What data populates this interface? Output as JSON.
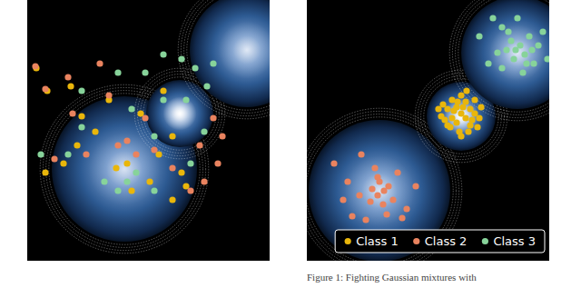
{
  "chart_data": [
    {
      "type": "scatter",
      "tick_labels": false,
      "marker": "circle",
      "xlim": [
        0,
        267
      ],
      "ylim": [
        287,
        0
      ],
      "gaussians": [
        {
          "x": 107,
          "y": 186,
          "radius": 80
        },
        {
          "x": 168,
          "y": 125,
          "radius": 37
        },
        {
          "x": 242,
          "y": 55,
          "radius": 63
        }
      ],
      "series": [
        {
          "color": "#e9b60b",
          "x": [
            10,
            22,
            48,
            60,
            75,
            40,
            98,
            110,
            150,
            160,
            170,
            115,
            135,
            160,
            175,
            125,
            90,
            55,
            145,
            20
          ],
          "values": [
            75,
            100,
            95,
            128,
            145,
            180,
            185,
            180,
            100,
            150,
            190,
            210,
            200,
            220,
            205,
            125,
            110,
            160,
            170,
            190
          ]
        },
        {
          "color": "#e9835f",
          "x": [
            9,
            20,
            45,
            80,
            90,
            130,
            140,
            160,
            190,
            205,
            215,
            110,
            100,
            180,
            65,
            30,
            50,
            120,
            210,
            195
          ],
          "values": [
            73,
            98,
            85,
            70,
            105,
            130,
            165,
            185,
            160,
            130,
            150,
            155,
            160,
            210,
            170,
            175,
            125,
            170,
            180,
            200
          ]
        },
        {
          "color": "#87d39a",
          "x": [
            60,
            100,
            130,
            150,
            170,
            185,
            198,
            205,
            115,
            150,
            175,
            195,
            110,
            120,
            100,
            85,
            140,
            45,
            60,
            15,
            140,
            180
          ],
          "values": [
            100,
            80,
            80,
            60,
            65,
            75,
            95,
            70,
            120,
            110,
            110,
            145,
            200,
            190,
            210,
            200,
            210,
            170,
            140,
            170,
            150,
            180
          ]
        }
      ]
    },
    {
      "type": "scatter",
      "tick_labels": false,
      "marker": "circle",
      "legend": "lower right",
      "xlim": [
        0,
        267
      ],
      "ylim": [
        287,
        0
      ],
      "gaussians": [
        {
          "x": 80,
          "y": 210,
          "radius": 78
        },
        {
          "x": 170,
          "y": 128,
          "radius": 38
        },
        {
          "x": 232,
          "y": 58,
          "radius": 62
        }
      ],
      "annotation": "Figure 1: Fighting Gaussian mixtures with",
      "series": [
        {
          "name": "Class 1",
          "color": "#e9b60b",
          "x": [
            150,
            155,
            160,
            165,
            170,
            175,
            180,
            185,
            190,
            160,
            165,
            170,
            175,
            180,
            155,
            168,
            178,
            148,
            185,
            172,
            162,
            158,
            188,
            170,
            176,
            145,
            192,
            166,
            182,
            152
          ],
          "values": [
            115,
            120,
            110,
            118,
            105,
            112,
            120,
            125,
            130,
            130,
            135,
            125,
            130,
            138,
            138,
            145,
            145,
            128,
            110,
            118,
            122,
            140,
            140,
            150,
            100,
            120,
            118,
            112,
            132,
            132
          ]
        },
        {
          "name": "Class 2",
          "color": "#e9835f",
          "x": [
            30,
            45,
            60,
            75,
            80,
            85,
            90,
            78,
            70,
            95,
            100,
            110,
            50,
            65,
            88,
            120,
            40,
            105,
            78,
            84,
            72,
            58
          ],
          "values": [
            180,
            200,
            170,
            185,
            200,
            210,
            205,
            215,
            222,
            220,
            190,
            230,
            238,
            242,
            236,
            205,
            220,
            240,
            195,
            225,
            208,
            215
          ]
        },
        {
          "name": "Class 3",
          "color": "#87d39a",
          "x": [
            190,
            205,
            215,
            225,
            230,
            235,
            240,
            245,
            250,
            260,
            215,
            228,
            238,
            220,
            248,
            232,
            210,
            255,
            222,
            242,
            200,
            265
          ],
          "values": [
            40,
            20,
            30,
            45,
            55,
            50,
            60,
            40,
            70,
            35,
            75,
            65,
            80,
            55,
            55,
            20,
            58,
            50,
            35,
            70,
            70,
            65
          ]
        }
      ]
    }
  ]
}
